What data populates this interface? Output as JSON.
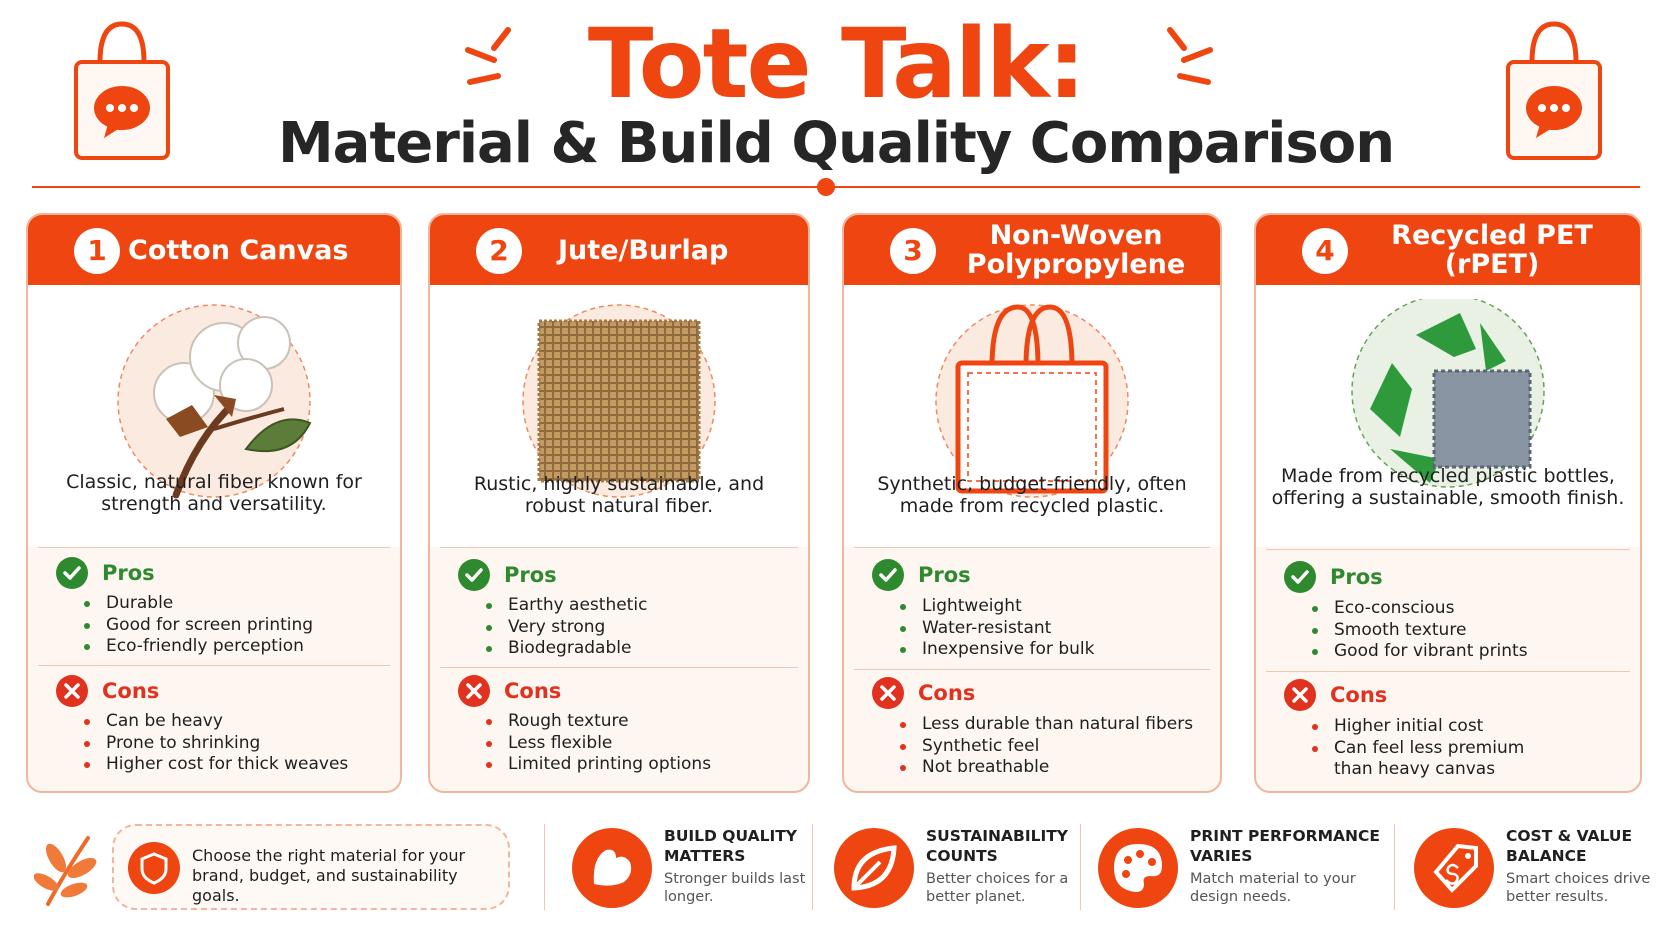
{
  "header": {
    "title": "Tote Talk:",
    "subtitle": "Material & Build Quality Comparison"
  },
  "colors": {
    "accent": "#ee4511",
    "pros": "#2f8a2f",
    "cons": "#e0321f",
    "card_border": "#f2b69b"
  },
  "cards": [
    {
      "number": "1",
      "title": "Cotton Canvas",
      "illustration": "cotton-boll-icon",
      "description": "Classic, natural fiber known for strength and versatility.",
      "pros_label": "Pros",
      "pros": [
        "Durable",
        "Good for screen printing",
        "Eco-friendly perception"
      ],
      "cons_label": "Cons",
      "cons": [
        "Can be heavy",
        "Prone to shrinking",
        "Higher cost for thick weaves"
      ]
    },
    {
      "number": "2",
      "title": "Jute/Burlap",
      "illustration": "burlap-swatch-icon",
      "description": "Rustic, highly sustainable, and robust natural fiber.",
      "pros_label": "Pros",
      "pros": [
        "Earthy aesthetic",
        "Very strong",
        "Biodegradable"
      ],
      "cons_label": "Cons",
      "cons": [
        "Rough texture",
        "Less flexible",
        "Limited printing options"
      ]
    },
    {
      "number": "3",
      "title": "Non-Woven Polypropylene",
      "illustration": "tote-bag-outline-icon",
      "description": "Synthetic, budget-friendly, often made from recycled plastic.",
      "pros_label": "Pros",
      "pros": [
        "Lightweight",
        "Water-resistant",
        "Inexpensive for bulk"
      ],
      "cons_label": "Cons",
      "cons": [
        "Less durable than natural fibers",
        "Synthetic feel",
        "Not breathable"
      ]
    },
    {
      "number": "4",
      "title": "Recycled PET (rPET)",
      "illustration": "recycle-fabric-icon",
      "description": "Made from recycled plastic bottles, offering a sustainable, smooth finish.",
      "pros_label": "Pros",
      "pros": [
        "Eco-conscious",
        "Smooth texture",
        "Good for vibrant prints"
      ],
      "cons_label": "Cons",
      "cons": [
        "Higher initial cost",
        "Can feel less premium than heavy canvas"
      ]
    }
  ],
  "footer": {
    "tip": "Choose the right material for your brand, budget, and sustainability goals.",
    "features": [
      {
        "icon": "flexed-arm-icon",
        "title": "BUILD QUALITY MATTERS",
        "desc": "Stronger builds last longer."
      },
      {
        "icon": "leaf-icon",
        "title": "SUSTAINABILITY COUNTS",
        "desc": "Better choices for a better planet."
      },
      {
        "icon": "paint-palette-icon",
        "title": "PRINT PERFORMANCE VARIES",
        "desc": "Match material to your design needs."
      },
      {
        "icon": "price-tag-icon",
        "title": "COST & VALUE BALANCE",
        "desc": "Smart choices drive better results."
      }
    ]
  }
}
